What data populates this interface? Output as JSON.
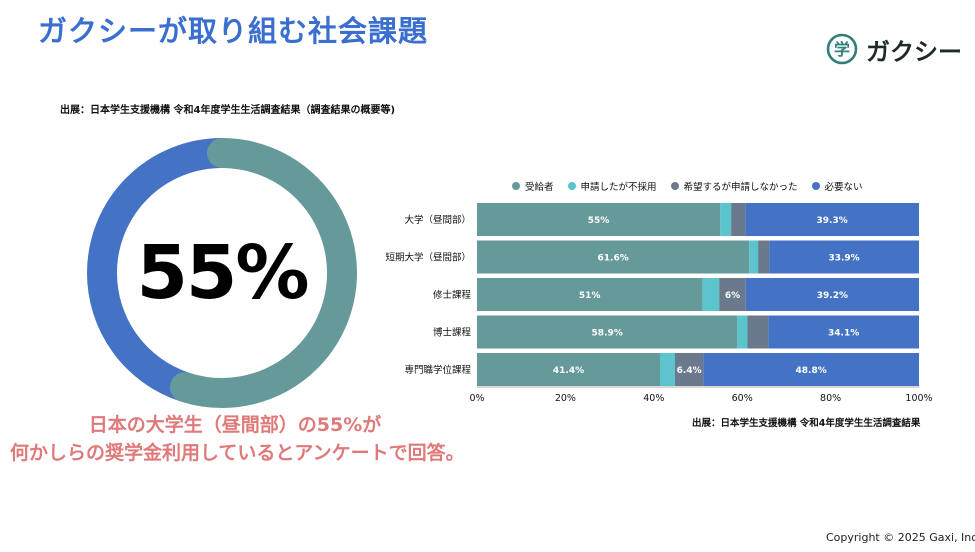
{
  "slide": {
    "title": "ガクシーが取り組む社会課題",
    "logo_text": "ガクシー",
    "logo_icon_glyph": "学",
    "source_top": "出展：日本学生支援機構 令和4年度学生生活調査結果（調査結果の概要等)",
    "source_bottom": "出展：日本学生支援機構 令和4年度学生生活調査結果",
    "caption_line1": "日本の大学生（昼間部）の55%が",
    "caption_line2": "何かしらの奨学金利用しているとアンケートで回答。",
    "copyright": "Copyright © 2025 Gaxi, Inc."
  },
  "chart_data": [
    {
      "type": "pie",
      "variant": "donut",
      "center_label": "55%",
      "slices": [
        {
          "name": "",
          "value": 55,
          "color": "#669999"
        },
        {
          "name": "",
          "value": 45,
          "color": "#4472c4"
        }
      ]
    },
    {
      "type": "bar",
      "orientation": "horizontal",
      "stacked": true,
      "percent": true,
      "categories": [
        "大学（昼間部）",
        "短期大学（昼間部）",
        "修士課程",
        "博士課程",
        "専門職学位課程"
      ],
      "series": [
        {
          "name": "受給者",
          "color": "#669999",
          "values": [
            55,
            61.6,
            51,
            58.9,
            41.4
          ],
          "labels": [
            "55%",
            "61.6%",
            "51%",
            "58.9%",
            "41.4%"
          ]
        },
        {
          "name": "申請したが不採用",
          "color": "#5bc4cc",
          "values": [
            2.5,
            2,
            3.8,
            2.3,
            3.4
          ],
          "labels": [
            "",
            "",
            "",
            "",
            ""
          ]
        },
        {
          "name": "希望するが申請しなかった",
          "color": "#6a7a8c",
          "values": [
            3.2,
            2.5,
            6,
            4.7,
            6.4
          ],
          "labels": [
            "",
            "",
            "6%",
            "",
            "6.4%"
          ]
        },
        {
          "name": "必要ない",
          "color": "#4472c4",
          "values": [
            39.3,
            33.9,
            39.2,
            34.1,
            48.8
          ],
          "labels": [
            "39.3%",
            "33.9%",
            "39.2%",
            "34.1%",
            "48.8%"
          ]
        }
      ],
      "xlim": [
        0,
        100
      ],
      "xticks": [
        "0%",
        "20%",
        "40%",
        "60%",
        "80%",
        "100%"
      ],
      "legend": "top",
      "grid": false
    }
  ]
}
